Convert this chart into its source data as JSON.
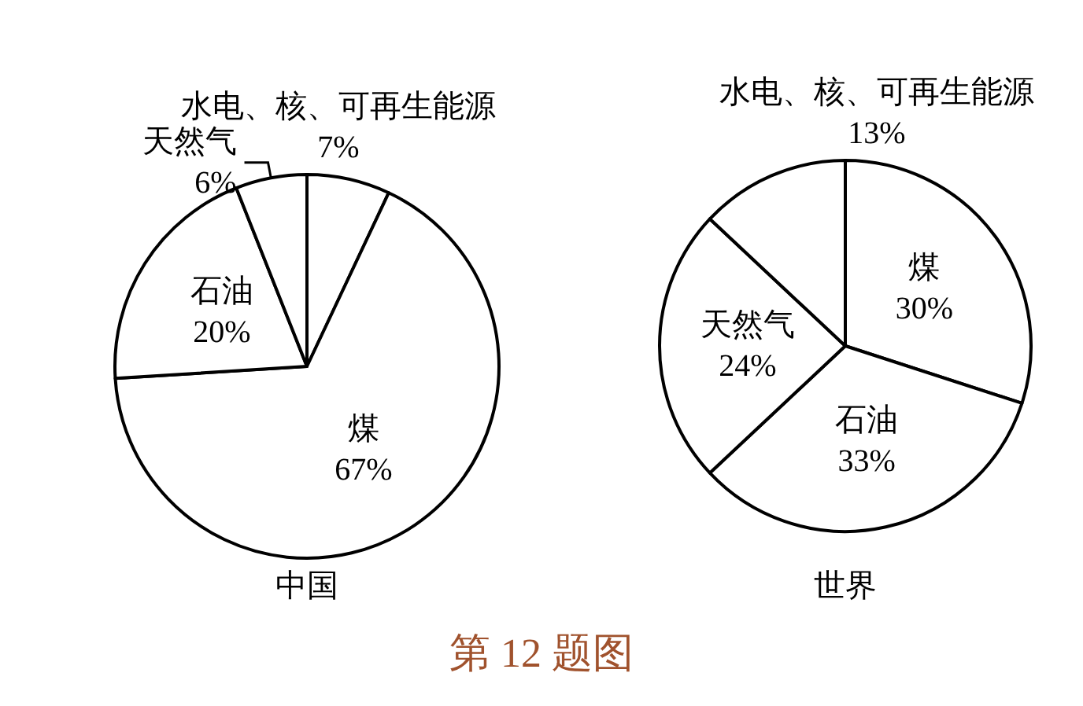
{
  "chart_data": [
    {
      "type": "pie",
      "title": "中国",
      "categories": [
        "水电、核、可再生能源",
        "煤",
        "石油",
        "天然气"
      ],
      "values": [
        7,
        67,
        20,
        6
      ],
      "value_labels": [
        "7%",
        "67%",
        "20%",
        "6%"
      ],
      "colors": [
        "#ffffff",
        "#ffffff",
        "#ffffff",
        "#ffffff"
      ]
    },
    {
      "type": "pie",
      "title": "世界",
      "categories": [
        "煤",
        "石油",
        "天然气",
        "水电、核、可再生能源"
      ],
      "values": [
        30,
        33,
        24,
        13
      ],
      "value_labels": [
        "30%",
        "33%",
        "24%",
        "13%"
      ],
      "colors": [
        "#ffffff",
        "#ffffff",
        "#ffffff",
        "#ffffff"
      ],
      "annotations": [
        "第 12 题图"
      ]
    }
  ]
}
